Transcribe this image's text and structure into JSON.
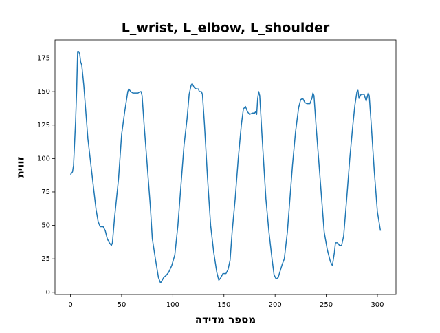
{
  "chart_data": {
    "type": "line",
    "title": "L_wrist, L_elbow, L_shoulder",
    "xlabel": "מספר מדידה",
    "ylabel": "זווית",
    "x": [
      0,
      2,
      3,
      5,
      6,
      7,
      8,
      9,
      10,
      11,
      13,
      15,
      17,
      20,
      23,
      25,
      27,
      29,
      32,
      34,
      36,
      38,
      40,
      41,
      43,
      45,
      47,
      50,
      53,
      56,
      57,
      59,
      61,
      64,
      66,
      68,
      69,
      70,
      72,
      75,
      78,
      80,
      83,
      86,
      88,
      89,
      91,
      94,
      96,
      99,
      102,
      105,
      108,
      111,
      114,
      116,
      118,
      119,
      121,
      123,
      125,
      126,
      128,
      129,
      131,
      134,
      137,
      140,
      143,
      145,
      147,
      149,
      152,
      154,
      156,
      158,
      161,
      164,
      167,
      169,
      171,
      173,
      175,
      178,
      180,
      181,
      182,
      183,
      184,
      185,
      187,
      189,
      191,
      194,
      197,
      199,
      201,
      203,
      205,
      207,
      209,
      212,
      214,
      217,
      220,
      223,
      225,
      227,
      229,
      231,
      234,
      236,
      237,
      238,
      240,
      243,
      246,
      248,
      251,
      254,
      256,
      258,
      259,
      261,
      263,
      265,
      267,
      270,
      273,
      276,
      278,
      280,
      281,
      282,
      284,
      287,
      289,
      291,
      292,
      294,
      297,
      300,
      303
    ],
    "series": [
      {
        "color": "#1f77b4",
        "values": [
          88,
          90,
          95,
          128,
          150,
          180,
          180,
          178,
          172,
          170,
          155,
          135,
          115,
          95,
          75,
          62,
          53,
          49,
          49,
          46,
          40,
          37,
          35,
          37,
          55,
          70,
          85,
          118,
          135,
          150,
          152,
          150,
          149,
          149,
          149,
          150,
          150,
          147,
          125,
          95,
          65,
          40,
          25,
          11,
          7,
          8,
          11,
          13,
          15,
          20,
          28,
          50,
          80,
          110,
          130,
          148,
          155,
          156,
          153,
          152,
          152,
          150,
          150,
          148,
          125,
          85,
          50,
          30,
          15,
          9,
          11,
          14,
          14,
          17,
          24,
          45,
          70,
          100,
          125,
          137,
          139,
          135,
          133,
          134,
          134,
          135,
          133,
          145,
          150,
          147,
          120,
          95,
          70,
          45,
          25,
          13,
          10,
          11,
          16,
          21,
          25,
          45,
          65,
          95,
          120,
          138,
          144,
          145,
          142,
          141,
          141,
          145,
          149,
          147,
          125,
          95,
          65,
          45,
          32,
          23,
          20,
          30,
          37,
          37,
          35,
          35,
          42,
          70,
          100,
          125,
          140,
          150,
          151,
          145,
          148,
          148,
          143,
          149,
          147,
          125,
          90,
          60,
          46
        ]
      }
    ],
    "xlim": [
      -15.15,
      318.15
    ],
    "ylim": [
      -1.65,
      188.65
    ],
    "xticks": [
      0,
      50,
      100,
      150,
      200,
      250,
      300
    ],
    "yticks": [
      0,
      25,
      50,
      75,
      100,
      125,
      150,
      175
    ]
  }
}
